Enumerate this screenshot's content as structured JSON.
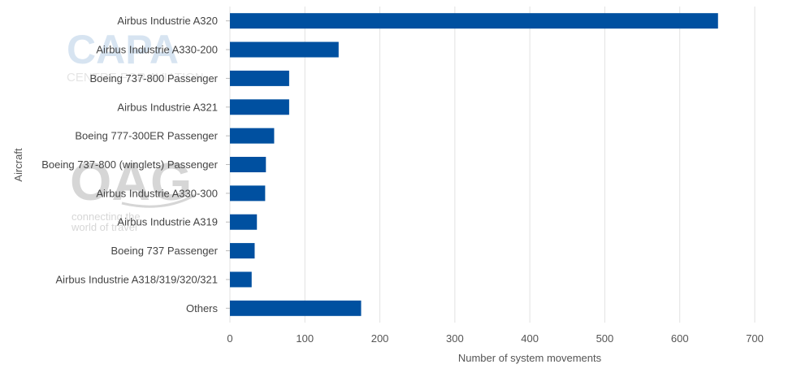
{
  "watermarks": {
    "capa_logo": "CAPA",
    "capa_tagline": "CENTRE FOR AVIATION",
    "oag_logo": "OAG",
    "oag_tagline_1": "connecting the",
    "oag_tagline_2": "world of travel"
  },
  "chart_data": {
    "type": "bar",
    "orientation": "horizontal",
    "title": "",
    "xlabel": "Number of system movements",
    "ylabel": "Aircraft",
    "categories": [
      "Airbus Industrie A320",
      "Airbus Industrie A330-200",
      "Boeing 737-800 Passenger",
      "Airbus Industrie A321",
      "Boeing 777-300ER Passenger",
      "Boeing 737-800 (winglets) Passenger",
      "Airbus Industrie A330-300",
      "Airbus Industrie A319",
      "Boeing 737 Passenger",
      "Airbus Industrie A318/319/320/321",
      "Others"
    ],
    "values": [
      651,
      145,
      79,
      79,
      59,
      48,
      47,
      36,
      33,
      29,
      175
    ],
    "xlim": [
      0,
      700
    ],
    "xticks": [
      0,
      100,
      200,
      300,
      400,
      500,
      600,
      700
    ],
    "grid": true,
    "bar_color": "#0050a0",
    "grid_color": "#e2e2e2"
  }
}
